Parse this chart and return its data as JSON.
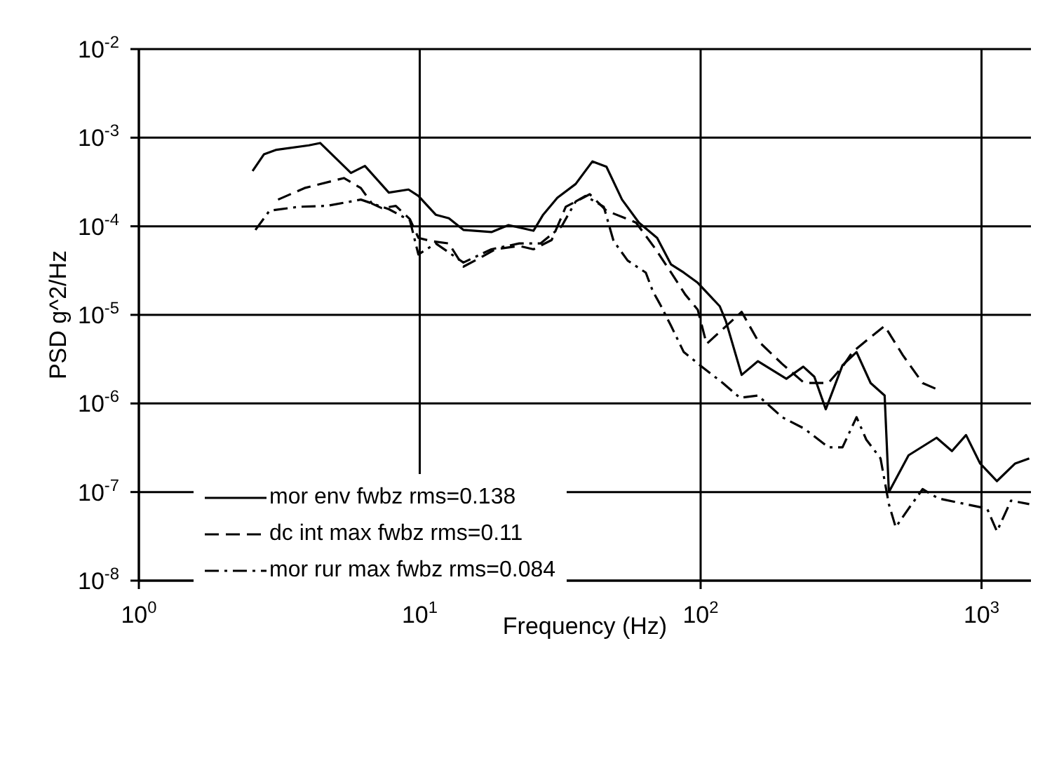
{
  "chart_data": {
    "type": "line",
    "xlabel": "Frequency (Hz)",
    "ylabel": "PSD g^2/Hz",
    "log": "xy",
    "grid": true,
    "legend": "bottom left",
    "xlim": [
      1,
      1500
    ],
    "ylim": [
      1e-08,
      0.01
    ],
    "xticks": [
      {
        "value": 1,
        "label": "10$^{0}$"
      },
      {
        "value": 10,
        "label": "10$^{1}$"
      },
      {
        "value": 100,
        "label": "10$^{2}$"
      },
      {
        "value": 1000,
        "label": "10$^{3}$"
      }
    ],
    "yticks": [
      {
        "value": 1e-08,
        "label": "10$^{-8}$"
      },
      {
        "value": 1e-07,
        "label": "10$^{-7}$"
      },
      {
        "value": 1e-06,
        "label": "10$^{-6}$"
      },
      {
        "value": 1e-05,
        "label": "10$^{-5}$"
      },
      {
        "value": 0.0001,
        "label": "10$^{-4}$"
      },
      {
        "value": 0.001,
        "label": "10$^{-3}$"
      },
      {
        "value": 0.01,
        "label": "10$^{-2}$"
      }
    ],
    "series": [
      {
        "name": "mor env fwbz rms=0.138",
        "color": "#000000",
        "line_style": "solid",
        "x": [
          2.54,
          2.79,
          3.09,
          4.03,
          4.42,
          5.69,
          6.38,
          7.76,
          9.12,
          9.89,
          11.4,
          12.7,
          14.3,
          18.0,
          20.7,
          25.4,
          27.5,
          30.9,
          35.9,
          41.2,
          46.2,
          52.5,
          60.3,
          70.0,
          78.5,
          87.1,
          97.7,
          117,
          123,
          140,
          160,
          202,
          232,
          254,
          279,
          320,
          359,
          403,
          452,
          468,
          550,
          692,
          785,
          881,
          989,
          1135,
          1318,
          1479
        ],
        "values": [
          0.00042,
          0.00065,
          0.00073,
          0.00082,
          0.00087,
          0.0004,
          0.00048,
          0.00024,
          0.00026,
          0.00022,
          0.000135,
          0.000123,
          9.1e-05,
          8.6e-05,
          0.000103,
          8.9e-05,
          0.000135,
          0.00021,
          0.0003,
          0.00054,
          0.00047,
          0.0002,
          0.00011,
          7.4e-05,
          3.7e-05,
          3e-05,
          2.3e-05,
          1.25e-05,
          8.5e-06,
          2.1e-06,
          3e-06,
          1.9e-06,
          2.6e-06,
          2e-06,
          8.6e-07,
          2.7e-06,
          3.8e-06,
          1.7e-06,
          1.23e-06,
          1e-07,
          2.6e-07,
          4.1e-07,
          2.9e-07,
          4.4e-07,
          2.1e-07,
          1.33e-07,
          2.1e-07,
          2.4e-07
        ]
      },
      {
        "name": "dc int max fwbz rms=0.11",
        "color": "#000000",
        "line_style": "dashed",
        "x": [
          3.13,
          3.89,
          5.37,
          6.17,
          6.76,
          7.33,
          8.22,
          9.23,
          9.89,
          11.0,
          12.7,
          14.3,
          16.4,
          18.6,
          22.6,
          25.4,
          29.5,
          33.1,
          40.3,
          46.2,
          58.9,
          69.2,
          78.5,
          88.1,
          97.7,
          105,
          140,
          160,
          195,
          234,
          285,
          320,
          347,
          403,
          452,
          525,
          617,
          700
        ],
        "values": [
          0.0002,
          0.00027,
          0.00035,
          0.00027,
          0.00018,
          0.00016,
          0.00017,
          0.00012,
          7.4e-05,
          6.8e-05,
          6.4e-05,
          3.5e-05,
          4.4e-05,
          5.5e-05,
          6e-05,
          5.5e-05,
          7e-05,
          0.000166,
          0.00023,
          0.00015,
          0.00011,
          5.5e-05,
          3e-05,
          1.7e-05,
          1.14e-05,
          4.7e-06,
          1.08e-05,
          5.1e-06,
          2.8e-06,
          1.7e-06,
          1.7e-06,
          2.6e-06,
          3.8e-06,
          5.6e-06,
          7.5e-06,
          3.5e-06,
          1.7e-06,
          1.43e-06
        ]
      },
      {
        "name": "mor rur max fwbz rms=0.084",
        "color": "#000000",
        "line_style": "dashdot",
        "x": [
          2.6,
          2.92,
          3.72,
          4.68,
          6.17,
          7.76,
          9.23,
          9.89,
          11.4,
          14.3,
          18.0,
          22.6,
          26.9,
          32.0,
          35.9,
          38.9,
          45.2,
          49.0,
          55.0,
          63.8,
          67.6,
          71.6,
          78.5,
          87.1,
          101,
          120,
          138,
          160,
          195,
          234,
          285,
          320,
          359,
          389,
          437,
          468,
          495,
          550,
          617,
          700,
          1047,
          1135,
          1274,
          1479
        ],
        "values": [
          9.1e-05,
          0.00015,
          0.000166,
          0.00017,
          0.0002,
          0.000156,
          0.000116,
          4.8e-05,
          6.4e-05,
          3.9e-05,
          5.5e-05,
          6.4e-05,
          6.4e-05,
          0.0001,
          0.00019,
          0.00022,
          0.000166,
          6.8e-05,
          4.1e-05,
          3e-05,
          1.84e-05,
          1.33e-05,
          7.5e-06,
          3.8e-06,
          2.6e-06,
          1.7e-06,
          1.16e-06,
          1.23e-06,
          7e-07,
          5.2e-07,
          3.2e-07,
          3.2e-07,
          7e-07,
          3.9e-07,
          2.4e-07,
          7.3e-08,
          4e-08,
          6.5e-08,
          1.08e-07,
          8.5e-08,
          6.5e-08,
          3.6e-08,
          8e-08,
          7.3e-08
        ]
      }
    ]
  }
}
